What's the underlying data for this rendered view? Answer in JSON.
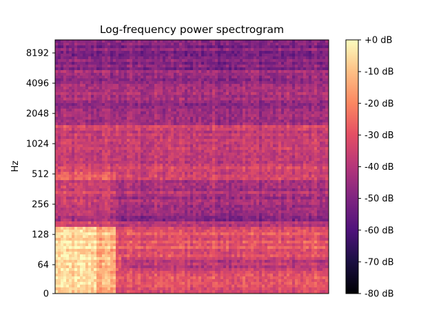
{
  "chart_data": {
    "type": "heatmap",
    "title": "Log-frequency power spectrogram",
    "xlabel": "",
    "ylabel": "Hz",
    "y_scale": "log2 (with 0 at bottom)",
    "y_ticks": [
      {
        "value": 0,
        "label": "0"
      },
      {
        "value": 64,
        "label": "64"
      },
      {
        "value": 128,
        "label": "128"
      },
      {
        "value": 256,
        "label": "256"
      },
      {
        "value": 512,
        "label": "512"
      },
      {
        "value": 1024,
        "label": "1024"
      },
      {
        "value": 2048,
        "label": "2048"
      },
      {
        "value": 4096,
        "label": "4096"
      },
      {
        "value": 8192,
        "label": "8192"
      }
    ],
    "colormap": "magma",
    "colorbar": {
      "range_db": [
        -80,
        0
      ],
      "ticks": [
        {
          "value": 0,
          "label": "+0 dB"
        },
        {
          "value": -10,
          "label": "-10 dB"
        },
        {
          "value": -20,
          "label": "-20 dB"
        },
        {
          "value": -30,
          "label": "-30 dB"
        },
        {
          "value": -40,
          "label": "-40 dB"
        },
        {
          "value": -50,
          "label": "-50 dB"
        },
        {
          "value": -60,
          "label": "-60 dB"
        },
        {
          "value": -70,
          "label": "-70 dB"
        },
        {
          "value": -80,
          "label": "-80 dB"
        }
      ]
    },
    "grid": false,
    "x_ticks": []
  }
}
